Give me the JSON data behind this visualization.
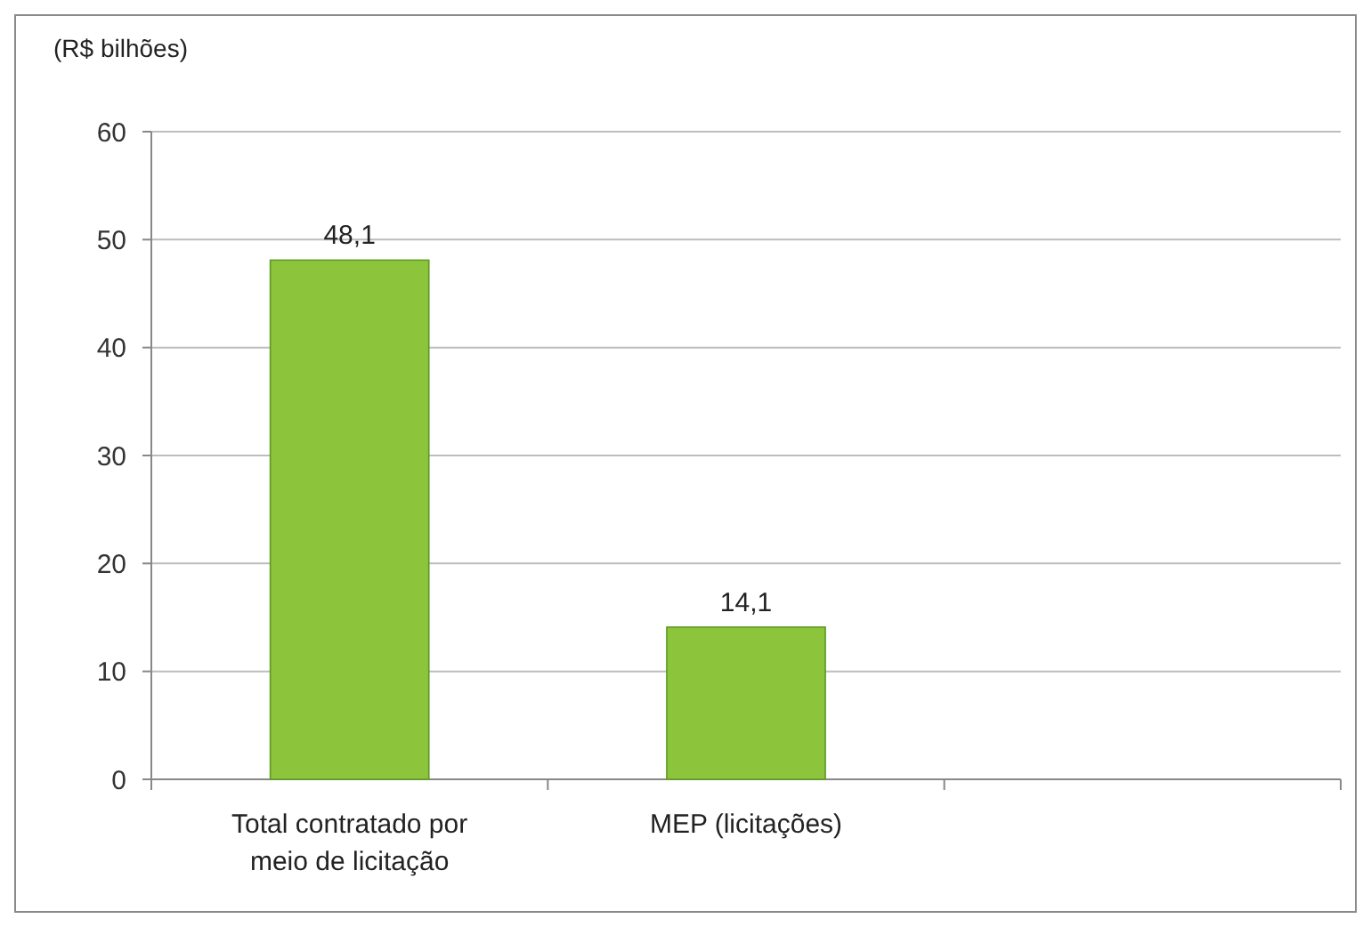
{
  "chart_data": {
    "type": "bar",
    "ylabel": "(R$ bilhões)",
    "categories": [
      "Total contratado por meio de licitação",
      "MEP (licitações)",
      null
    ],
    "values": [
      48.1,
      14.1,
      null
    ],
    "value_labels": [
      "48,1",
      "14,1",
      null
    ],
    "color": "#8cc43c",
    "ylim": [
      0,
      60
    ],
    "yticks": [
      0,
      10,
      20,
      30,
      40,
      50,
      60
    ],
    "grid": "y"
  }
}
